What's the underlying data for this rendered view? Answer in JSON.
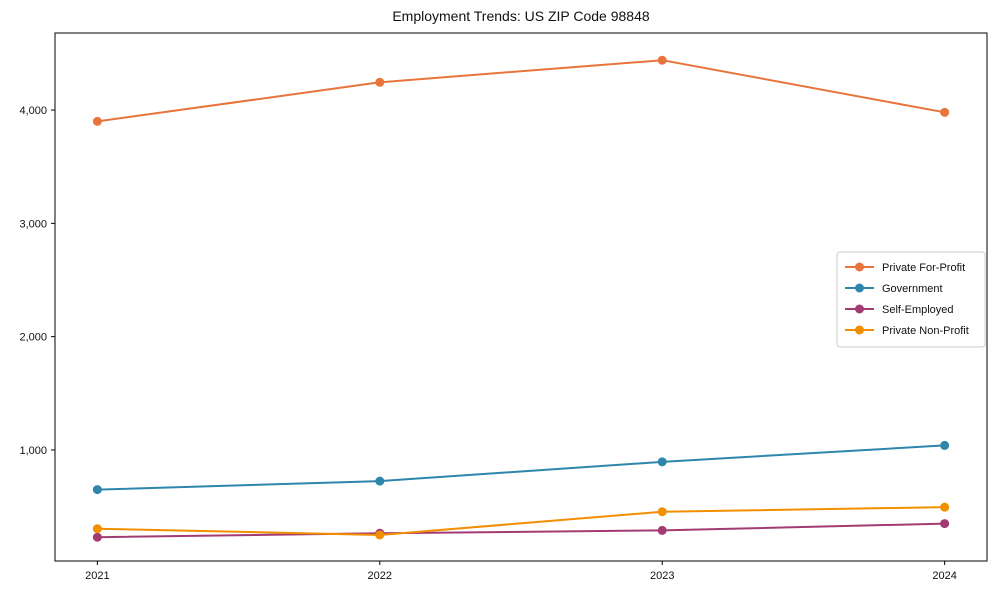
{
  "chart_data": {
    "type": "line",
    "title": "Employment Trends: US ZIP Code 98848",
    "xlabel": "",
    "ylabel": "",
    "x_values": [
      2021,
      2022,
      2023,
      2024
    ],
    "x_tick_labels": [
      "2021",
      "2022",
      "2023",
      "2024"
    ],
    "y_ticks": [
      {
        "value": 1000,
        "label": "1,000"
      },
      {
        "value": 2000,
        "label": "2,000"
      },
      {
        "value": 3000,
        "label": "3,000"
      },
      {
        "value": 4000,
        "label": "4,000"
      }
    ],
    "xlim": [
      2020.85,
      2024.15
    ],
    "ylim": [
      20,
      4680
    ],
    "grid": false,
    "frame": true,
    "marker": "circle",
    "background_color": "#ffffff",
    "axis_color": "#000000",
    "legend": {
      "position": "center-right",
      "border_color": "#cccccc",
      "entries": [
        "Private For-Profit",
        "Government",
        "Self-Employed",
        "Private Non-Profit"
      ]
    },
    "series": [
      {
        "name": "Private For-Profit",
        "color": "#e8743b",
        "values": [
          3900,
          4245,
          4440,
          3980
        ]
      },
      {
        "name": "Government",
        "color": "#2e86ab",
        "values": [
          650,
          725,
          895,
          1040
        ]
      },
      {
        "name": "Self-Employed",
        "color": "#a23b72",
        "values": [
          230,
          265,
          290,
          350
        ]
      },
      {
        "name": "Private Non-Profit",
        "color": "#f18f01",
        "values": [
          305,
          250,
          455,
          495
        ]
      }
    ]
  }
}
